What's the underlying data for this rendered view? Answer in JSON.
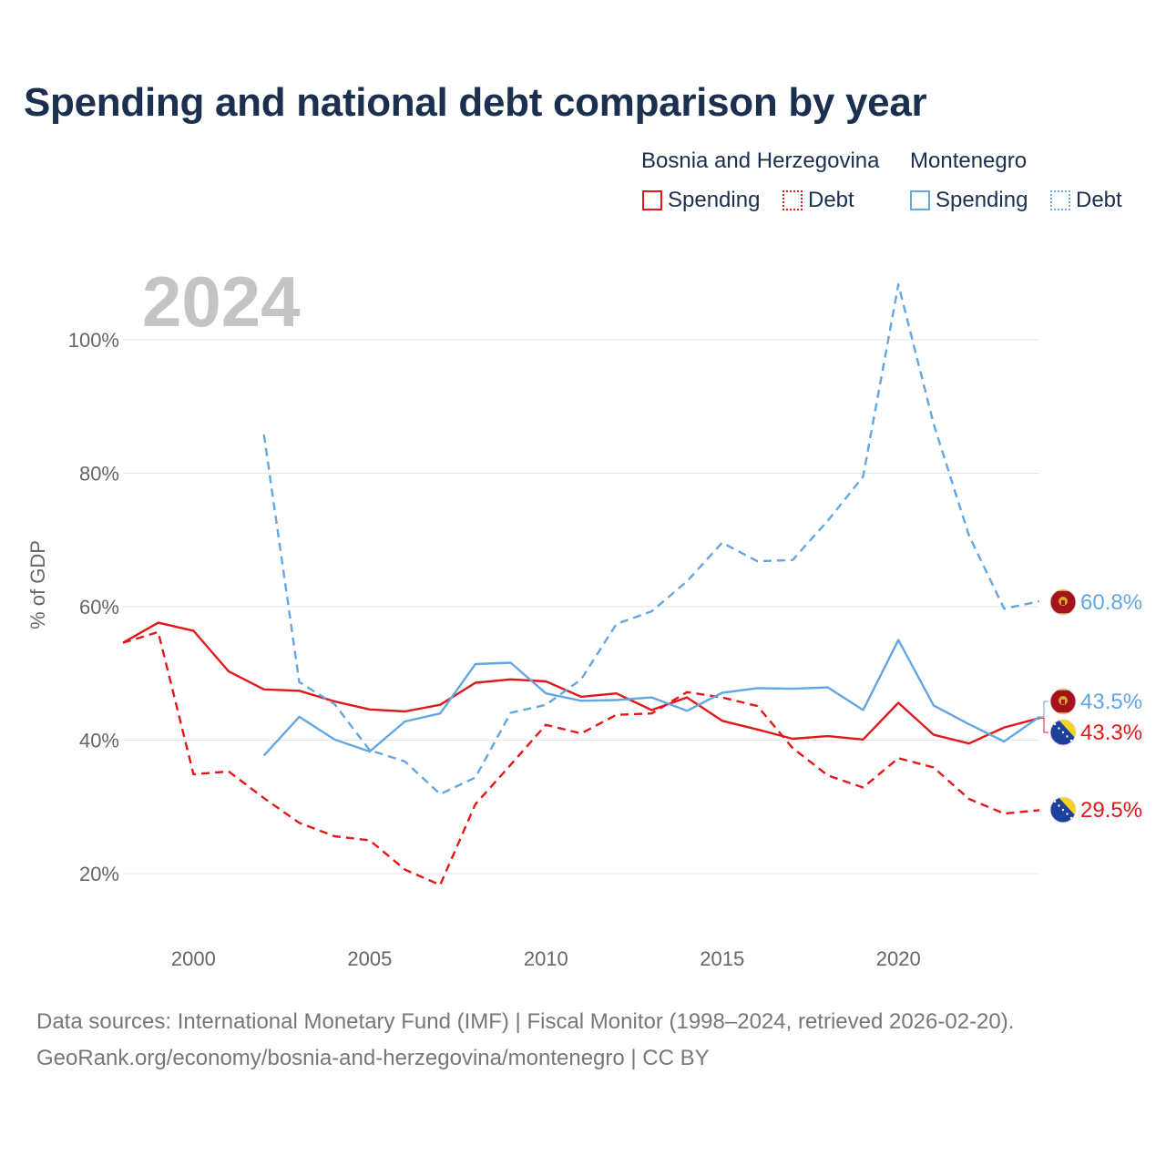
{
  "title": "Spending and national debt comparison by year",
  "legend": {
    "bih_title": "Bosnia and Herzegovina",
    "mne_title": "Montenegro",
    "bih_spending": "Spending",
    "bih_debt": "Debt",
    "mne_spending": "Spending",
    "mne_debt": "Debt"
  },
  "highlight_year": "2024",
  "colors": {
    "bih": "#e21818",
    "mne": "#63a6e2",
    "axis_text": "#666666",
    "title": "#1b2f4e"
  },
  "chart_data": {
    "type": "line",
    "title": "Spending and national debt comparison by year",
    "xlabel": "",
    "ylabel": "% of GDP",
    "xlim": [
      1998,
      2024
    ],
    "ylim": [
      10,
      112
    ],
    "x_ticks": [
      2000,
      2005,
      2010,
      2015,
      2020
    ],
    "x_tick_labels": [
      "2000",
      "2005",
      "2010",
      "2015",
      "2020"
    ],
    "y_ticks": [
      20,
      40,
      60,
      80,
      100
    ],
    "y_tick_labels": [
      "20%",
      "40%",
      "60%",
      "80%",
      "100%"
    ],
    "grid": true,
    "series": [
      {
        "name": "Bosnia and Herzegovina Spending",
        "country": "bih",
        "dash": false,
        "x": [
          1998,
          1999,
          2000,
          2001,
          2002,
          2003,
          2004,
          2005,
          2006,
          2007,
          2008,
          2009,
          2010,
          2011,
          2012,
          2013,
          2014,
          2015,
          2016,
          2017,
          2018,
          2019,
          2020,
          2021,
          2022,
          2023,
          2024
        ],
        "values": [
          54.6,
          57.6,
          56.4,
          50.3,
          47.6,
          47.4,
          45.8,
          44.6,
          44.3,
          45.3,
          48.6,
          49.1,
          48.8,
          46.5,
          47.0,
          44.5,
          46.4,
          42.9,
          41.6,
          40.2,
          40.6,
          40.1,
          45.6,
          40.8,
          39.5,
          41.9,
          43.3
        ]
      },
      {
        "name": "Bosnia and Herzegovina Debt",
        "country": "bih",
        "dash": true,
        "x": [
          1998,
          1999,
          2000,
          2001,
          2002,
          2003,
          2004,
          2005,
          2006,
          2007,
          2008,
          2009,
          2010,
          2011,
          2012,
          2013,
          2014,
          2015,
          2016,
          2017,
          2018,
          2019,
          2020,
          2021,
          2022,
          2023,
          2024
        ],
        "values": [
          54.6,
          56.2,
          34.9,
          35.3,
          31.3,
          27.6,
          25.6,
          25.0,
          20.6,
          18.3,
          30.4,
          36.3,
          42.3,
          41.0,
          43.8,
          44.0,
          47.2,
          46.4,
          45.1,
          38.8,
          34.7,
          32.9,
          37.3,
          35.9,
          31.2,
          29.0,
          29.5
        ]
      },
      {
        "name": "Montenegro Spending",
        "country": "mne",
        "dash": false,
        "x": [
          2002,
          2003,
          2004,
          2005,
          2006,
          2007,
          2008,
          2009,
          2010,
          2011,
          2012,
          2013,
          2014,
          2015,
          2016,
          2017,
          2018,
          2019,
          2020,
          2021,
          2022,
          2023,
          2024
        ],
        "values": [
          37.7,
          43.5,
          40.1,
          38.3,
          42.8,
          44.0,
          51.4,
          51.6,
          47.0,
          45.9,
          46.0,
          46.4,
          44.4,
          47.1,
          47.8,
          47.7,
          47.9,
          44.5,
          55.0,
          45.2,
          42.4,
          39.8,
          43.5
        ]
      },
      {
        "name": "Montenegro Debt",
        "country": "mne",
        "dash": true,
        "x": [
          2002,
          2003,
          2004,
          2005,
          2006,
          2007,
          2008,
          2009,
          2010,
          2011,
          2012,
          2013,
          2014,
          2015,
          2016,
          2017,
          2018,
          2019,
          2020,
          2021,
          2022,
          2023,
          2024
        ],
        "values": [
          85.8,
          48.7,
          45.4,
          38.5,
          36.8,
          31.9,
          34.4,
          44.1,
          45.3,
          49.1,
          57.4,
          59.3,
          63.8,
          69.6,
          66.8,
          67.0,
          72.9,
          79.5,
          108.3,
          87.4,
          70.7,
          59.7,
          60.8
        ]
      }
    ],
    "end_labels": [
      {
        "series": "Montenegro Debt",
        "text": "60.8%",
        "country": "mne"
      },
      {
        "series": "Montenegro Spending",
        "text": "43.5%",
        "country": "mne"
      },
      {
        "series": "Bosnia and Herzegovina Spending",
        "text": "43.3%",
        "country": "bih"
      },
      {
        "series": "Bosnia and Herzegovina Debt",
        "text": "29.5%",
        "country": "bih"
      }
    ]
  },
  "footer": {
    "line1": "Data sources: International Monetary Fund (IMF) | Fiscal Monitor (1998–2024, retrieved 2026-02-20).",
    "line2": "GeoRank.org/economy/bosnia-and-herzegovina/montenegro | CC BY"
  }
}
